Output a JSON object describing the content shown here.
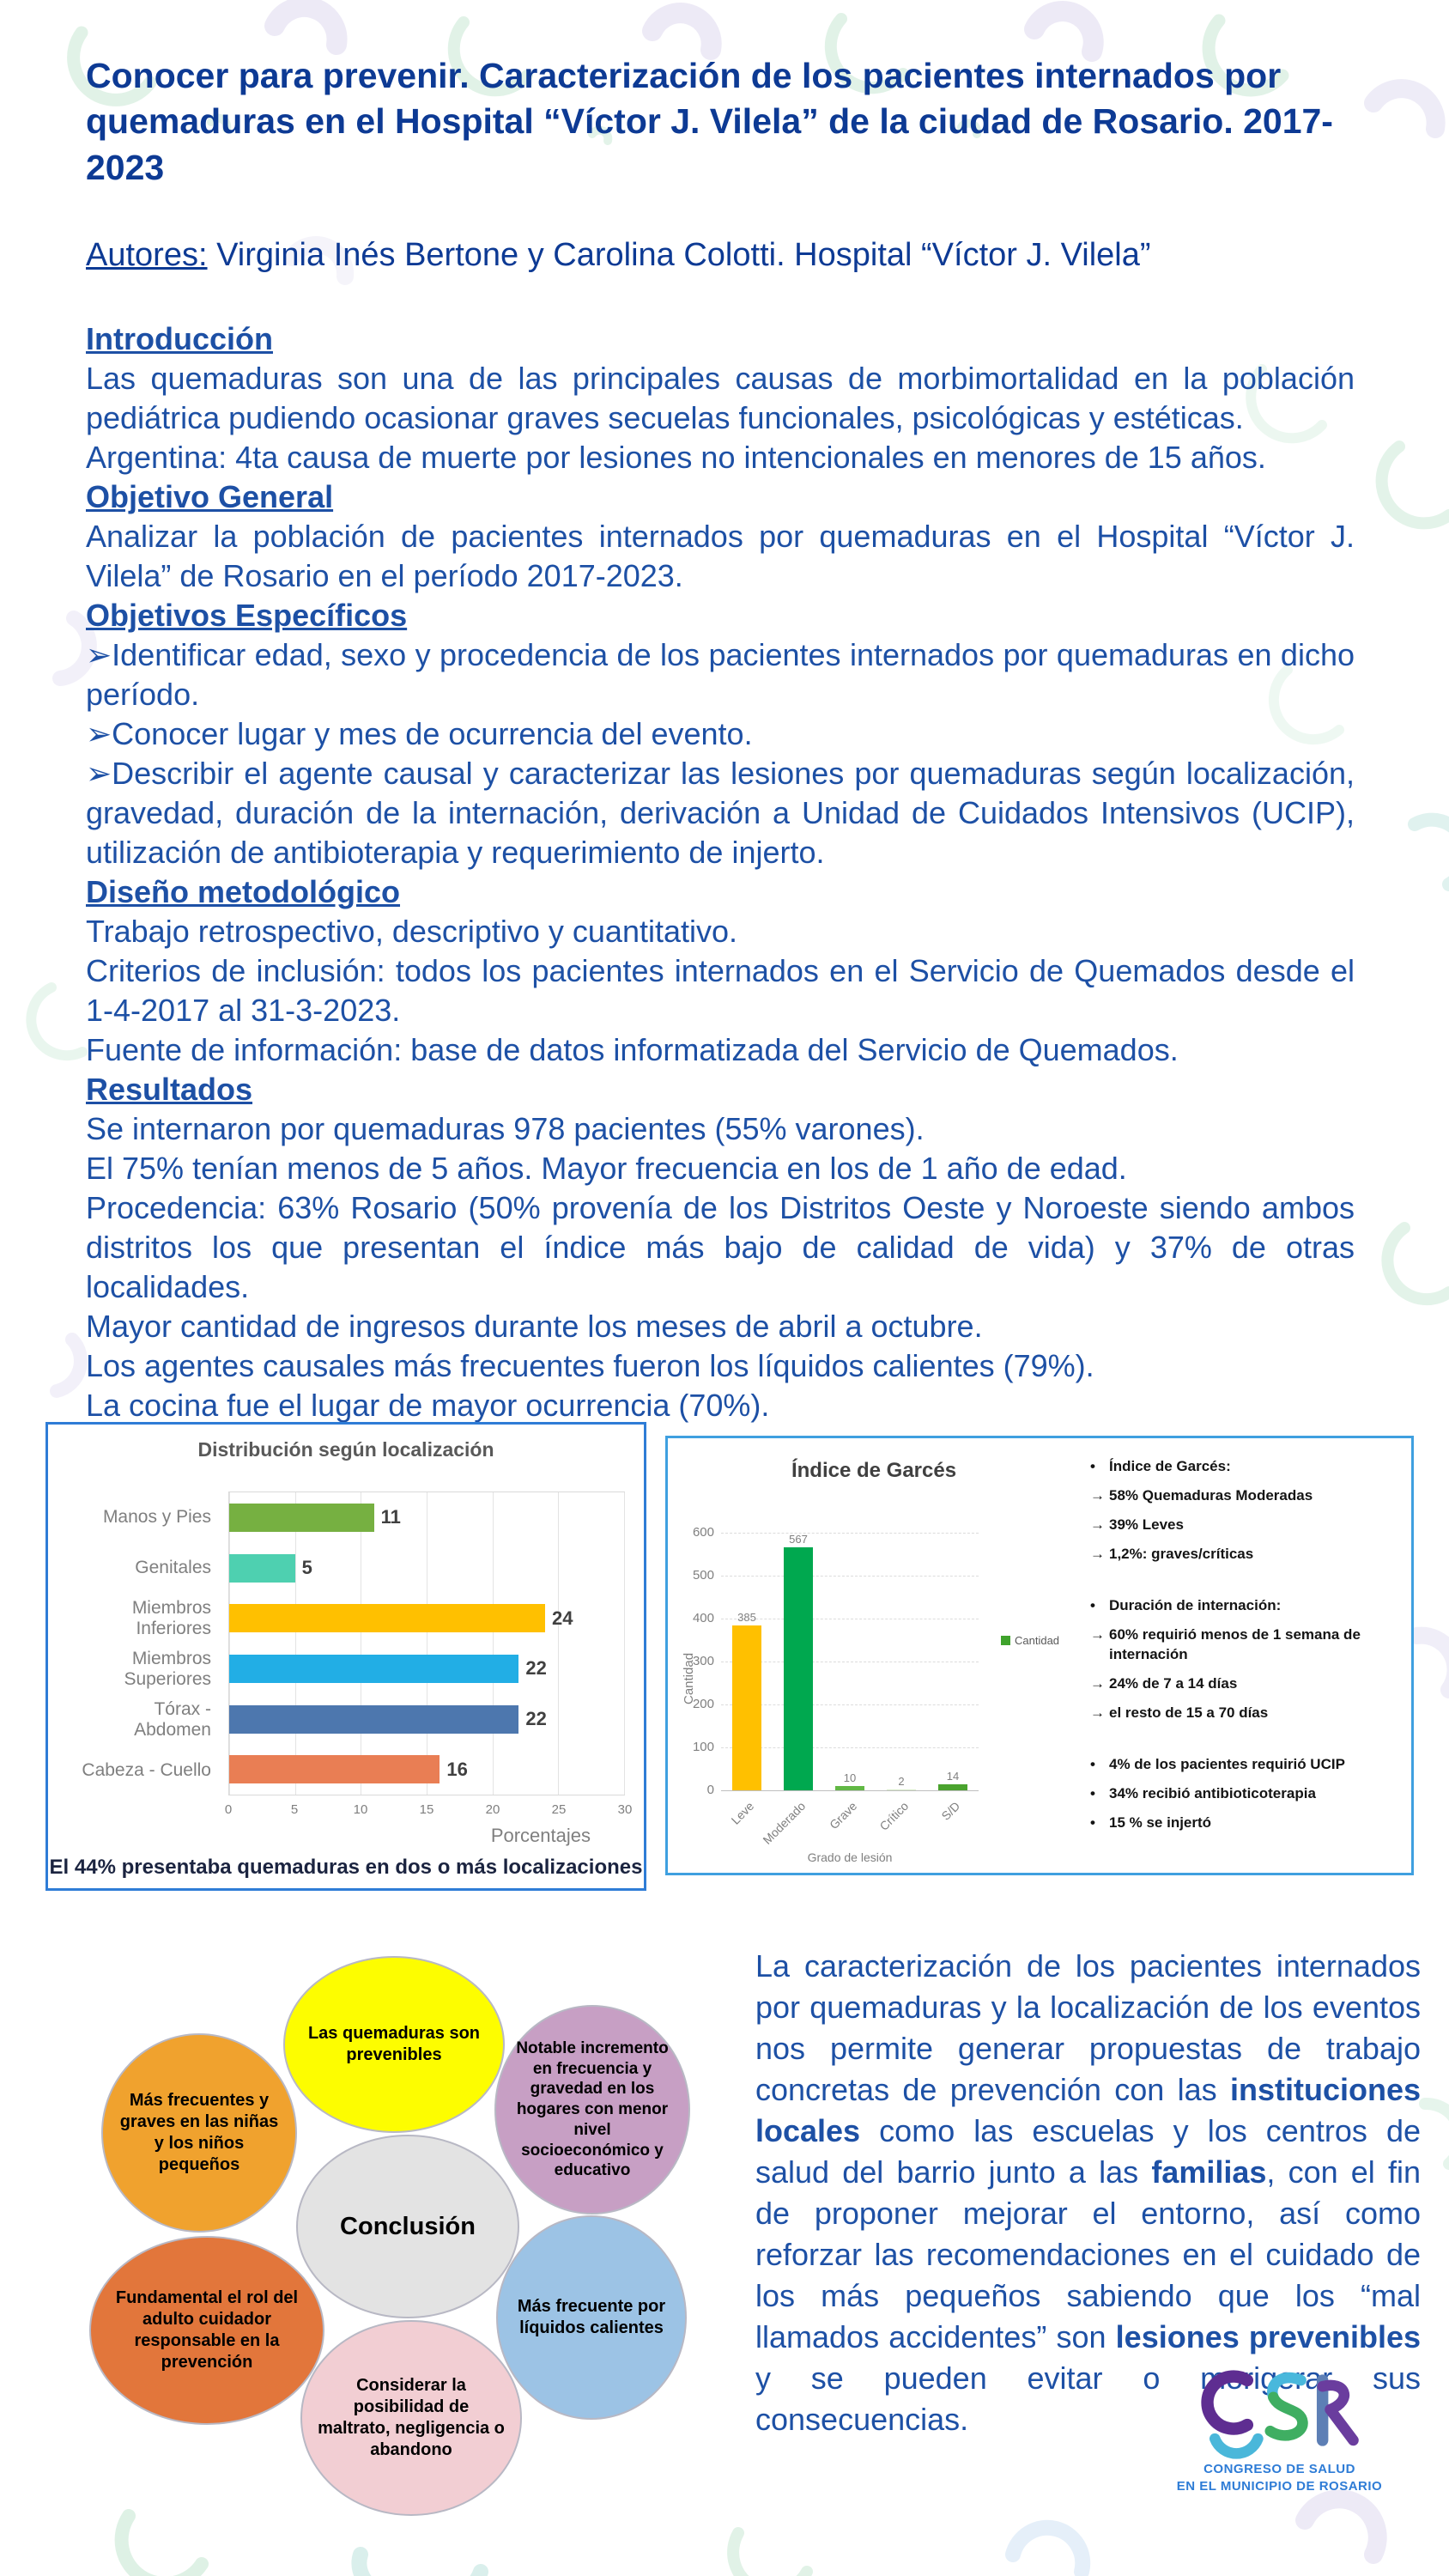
{
  "header": {
    "title": "Conocer para prevenir. Caracterización de los pacientes internados por quemaduras en el Hospital “Víctor J. Vilela” de la ciudad de Rosario. 2017-2023",
    "authors_label": "Autores:",
    "authors_names": " Virginia Inés Bertone y Carolina Colotti. Hospital “Víctor J. Vilela”"
  },
  "sections": {
    "intro": {
      "heading": "Introducción",
      "paragraphs": [
        "Las quemaduras son una de las principales causas de morbimortalidad en la población pediátrica pudiendo ocasionar graves secuelas funcionales, psicológicas y estéticas.",
        "Argentina: 4ta causa de muerte por lesiones no intencionales en menores de 15 años."
      ]
    },
    "objetivo_general": {
      "heading": "Objetivo General",
      "paragraphs": [
        "Analizar la población de pacientes internados por quemaduras en el Hospital “Víctor J. Vilela” de Rosario en el período 2017-2023."
      ]
    },
    "objetivos_especificos": {
      "heading": "Objetivos Específicos",
      "paragraphs": [
        "➢Identificar edad, sexo y procedencia de los pacientes internados por quemaduras en dicho período.",
        "➢Conocer lugar y mes de ocurrencia del evento.",
        "➢Describir el agente causal y caracterizar las lesiones por quemaduras según localización, gravedad, duración de la internación, derivación a Unidad de Cuidados Intensivos (UCIP), utilización de antibioterapia y requerimiento de injerto."
      ]
    },
    "diseno": {
      "heading": "Diseño metodológico",
      "paragraphs": [
        "Trabajo retrospectivo, descriptivo y cuantitativo.",
        "Criterios de inclusión: todos los pacientes internados en el Servicio de Quemados desde el 1-4-2017 al 31-3-2023.",
        "Fuente de información: base de datos informatizada del Servicio de Quemados."
      ]
    },
    "resultados": {
      "heading": "Resultados",
      "paragraphs": [
        "Se internaron por quemaduras 978 pacientes (55% varones).",
        "El 75% tenían menos de 5 años. Mayor frecuencia en los de 1 año de edad.",
        "Procedencia: 63% Rosario (50% provenía de los Distritos Oeste y Noroeste siendo ambos distritos los que presentan el índice más bajo de calidad de vida) y 37% de otras localidades.",
        "Mayor cantidad de ingresos durante los meses de abril a octubre.",
        "Los agentes causales más frecuentes fueron los líquidos calientes (79%).",
        "La cocina fue el lugar de mayor ocurrencia (70%)."
      ]
    }
  },
  "chart_data": [
    {
      "type": "bar",
      "orientation": "horizontal",
      "title": "Distribución según localización",
      "categories": [
        "Manos y Pies",
        "Genitales",
        "Miembros\nInferiores",
        "Miembros\nSuperiores",
        "Tórax -\nAbdomen",
        "Cabeza - Cuello"
      ],
      "values": [
        11,
        5,
        24,
        22,
        22,
        16
      ],
      "colors": [
        "#76b041",
        "#4ed0b0",
        "#ffc000",
        "#22aee5",
        "#4d77ae",
        "#e97e54"
      ],
      "xlabel": "Porcentajes",
      "xticks": [
        0,
        5,
        10,
        15,
        20,
        25,
        30
      ],
      "xlim": [
        0,
        30
      ],
      "grid": true,
      "note": "El 44% presentaba quemaduras en dos o más localizaciones"
    },
    {
      "type": "bar",
      "orientation": "vertical",
      "title": "Índice de Garcés",
      "categories": [
        "Leve",
        "Moderado",
        "Grave",
        "Crítico",
        "S/D"
      ],
      "values": [
        385,
        567,
        10,
        2,
        14
      ],
      "colors": [
        "#ffc000",
        "#00a84f",
        "#62b845",
        "#d8ecc8",
        "#4aa32e"
      ],
      "ylabel": "Cantidad",
      "xlabel": "Grado de lesión",
      "yticks": [
        0,
        100,
        200,
        300,
        400,
        500,
        600
      ],
      "ylim": [
        0,
        600
      ],
      "grid": true,
      "legend_position": "right",
      "legend_label": "Cantidad",
      "legend_color": "#3fa32c"
    }
  ],
  "garces_panel": {
    "bullets": [
      {
        "marker": "•",
        "text": "Índice de Garcés:"
      },
      {
        "marker": "→",
        "text": "58% Quemaduras Moderadas"
      },
      {
        "marker": "→",
        "text": "39% Leves"
      },
      {
        "marker": "→",
        "text": "1,2%: graves/críticas"
      },
      {
        "marker": "",
        "text": ""
      },
      {
        "marker": "•",
        "text": "Duración de internación:"
      },
      {
        "marker": "→",
        "text": "60% requirió menos de 1 semana de internación"
      },
      {
        "marker": "→",
        "text": "24% de 7 a 14 días"
      },
      {
        "marker": "→",
        "text": "el resto de 15 a 70 días"
      },
      {
        "marker": "",
        "text": ""
      },
      {
        "marker": "•",
        "text": "4% de los pacientes requirió UCIP"
      },
      {
        "marker": "•",
        "text": "34% recibió antibioticoterapia"
      },
      {
        "marker": "•",
        "text": "15 % se injertó"
      }
    ]
  },
  "diagram": {
    "nodes": [
      {
        "id": "prevenibles",
        "text": "Las quemaduras son prevenibles",
        "color": "#fdfd00"
      },
      {
        "id": "frecuentes-ninos",
        "text": "Más frecuentes y graves en las niñas y los niños pequeños",
        "color": "#f0a22e"
      },
      {
        "id": "incremento-hogares",
        "text": "Notable incremento en frecuencia y gravedad en los hogares con menor nivel socioeconómico y educativo",
        "color": "#c79fc4"
      },
      {
        "id": "conclusion",
        "text": "Conclusión",
        "color": "#e3e3e3"
      },
      {
        "id": "rol-adulto",
        "text": "Fundamental el rol del adulto cuidador responsable en la prevención",
        "color": "#e2763b"
      },
      {
        "id": "maltrato",
        "text": "Considerar la posibilidad de maltrato, negligencia o abandono",
        "color": "#f2ced3"
      },
      {
        "id": "liquidos-calientes",
        "text": "Más frecuente por líquidos calientes",
        "color": "#9cc3e5"
      }
    ]
  },
  "conclusion": {
    "segments": [
      {
        "text": "La caracterización de los pacientes internados por quemaduras y la localización de los eventos nos permite generar propuestas de trabajo concretas de prevención con las ",
        "bold": false
      },
      {
        "text": "instituciones locales",
        "bold": true
      },
      {
        "text": " como las escuelas y los centros de salud del barrio junto a las ",
        "bold": false
      },
      {
        "text": "familias",
        "bold": true
      },
      {
        "text": ", con el fin de proponer mejorar el entorno, así como reforzar las recomendaciones en el cuidado de los más pequeños sabiendo que los “mal llamados accidentes” son ",
        "bold": false
      },
      {
        "text": "lesiones prevenibles",
        "bold": true
      },
      {
        "text": " y se pueden evitar o morigerar sus consecuencias.",
        "bold": false
      }
    ]
  },
  "logo": {
    "letters": "CSR",
    "line1": "CONGRESO DE SALUD",
    "line2": "EN EL MUNICIPIO DE ROSARIO"
  },
  "colors": {
    "title_blue": "#0d3a94",
    "body_blue": "#1d50a5",
    "chart1_border": "#2e7cd6",
    "chart2_border": "#3fa0e0",
    "note_dark": "#1b2440",
    "logo_text": "#2e7cd6"
  }
}
